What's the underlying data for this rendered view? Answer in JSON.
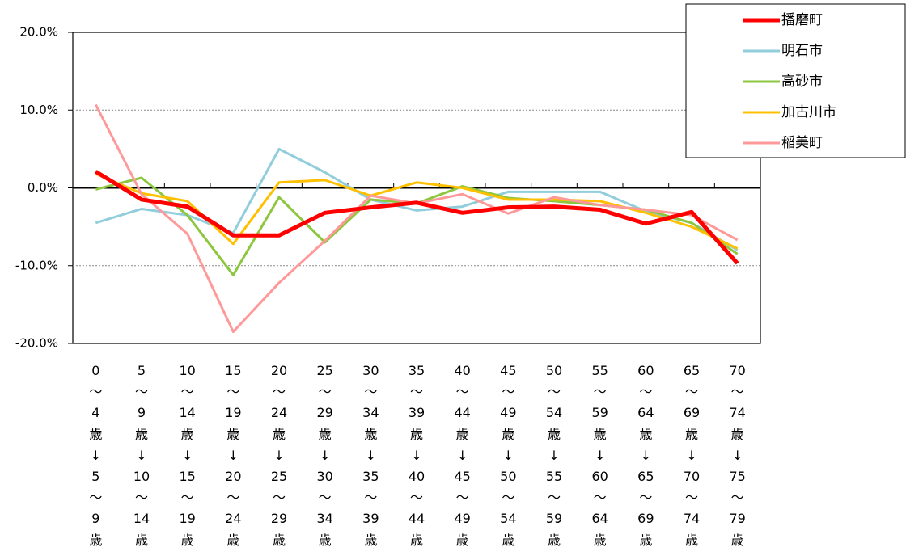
{
  "chart_data": {
    "type": "line",
    "categories": [
      "0\n～\n4\n歳\n↓\n5\n～\n9\n歳",
      "5\n～\n9\n歳\n↓\n10\n～\n14\n歳",
      "10\n～\n14\n歳\n↓\n15\n～\n19\n歳",
      "15\n～\n19\n歳\n↓\n20\n～\n24\n歳",
      "20\n～\n24\n歳\n↓\n25\n～\n29\n歳",
      "25\n～\n29\n歳\n↓\n30\n～\n34\n歳",
      "30\n～\n34\n歳\n↓\n35\n～\n39\n歳",
      "35\n～\n39\n歳\n↓\n40\n～\n44\n歳",
      "40\n～\n44\n歳\n↓\n45\n～\n49\n歳",
      "45\n～\n49\n歳\n↓\n50\n～\n54\n歳",
      "50\n～\n54\n歳\n↓\n55\n～\n59\n歳",
      "55\n～\n59\n歳\n↓\n60\n～\n64\n歳",
      "60\n～\n64\n歳\n↓\n65\n～\n69\n歳",
      "65\n～\n69\n歳\n↓\n70\n～\n74\n歳",
      "70\n～\n74\n歳\n↓\n75\n～\n79\n歳"
    ],
    "series": [
      {
        "name": "明石市",
        "color": "#92cddc",
        "width": 3,
        "values": [
          -4.5,
          -2.7,
          -3.5,
          -5.8,
          5.0,
          2.0,
          -1.5,
          -2.9,
          -2.4,
          -0.5,
          -0.5,
          -0.5,
          -3.0,
          -4.5,
          -8.0
        ]
      },
      {
        "name": "高砂市",
        "color": "#8dc63f",
        "width": 3,
        "values": [
          -0.2,
          1.3,
          -3.5,
          -11.2,
          -1.2,
          -7.0,
          -1.5,
          -2.0,
          0.2,
          -1.3,
          -1.7,
          -2.2,
          -2.8,
          -4.5,
          -8.5
        ]
      },
      {
        "name": "加古川市",
        "color": "#ffc000",
        "width": 3,
        "values": [
          1.8,
          -0.7,
          -1.7,
          -7.2,
          0.7,
          1.0,
          -1.0,
          0.7,
          0.0,
          -1.5,
          -1.5,
          -1.7,
          -3.2,
          -5.0,
          -7.8
        ]
      },
      {
        "name": "稲美町",
        "color": "#ff9999",
        "width": 3,
        "values": [
          10.7,
          -0.8,
          -5.9,
          -18.5,
          -12.2,
          -6.8,
          -1.0,
          -2.0,
          -0.8,
          -3.3,
          -1.2,
          -2.2,
          -2.8,
          -3.5,
          -6.7
        ]
      },
      {
        "name": "播磨町",
        "color": "#ff0000",
        "width": 5,
        "values": [
          2.1,
          -1.5,
          -2.4,
          -6.1,
          -6.1,
          -3.2,
          -2.5,
          -1.9,
          -3.2,
          -2.5,
          -2.4,
          -2.8,
          -4.6,
          -3.1,
          -9.7
        ]
      }
    ],
    "legend_order": [
      4,
      0,
      1,
      2,
      3
    ],
    "ylim": [
      -20,
      20
    ],
    "yticks": [
      {
        "value": -20,
        "label": "-20.0%"
      },
      {
        "value": -10,
        "label": "-10.0%"
      },
      {
        "value": 0,
        "label": "0.0%"
      },
      {
        "value": 10,
        "label": "10.0%"
      },
      {
        "value": 20,
        "label": "20.0%"
      }
    ],
    "grid": true,
    "legend": "upper right"
  }
}
